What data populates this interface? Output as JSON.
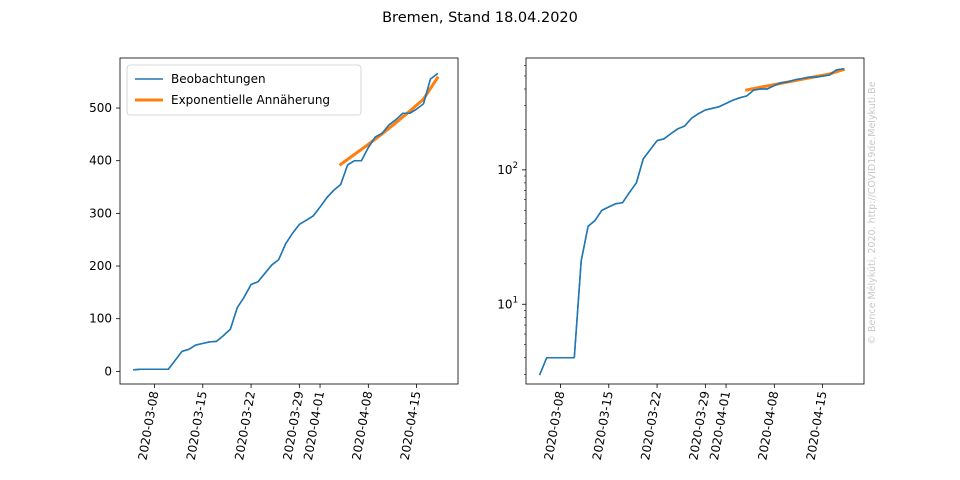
{
  "figure": {
    "title": "Bremen, Stand 18.04.2020",
    "watermark": "© Bence Mélykúti, 2020. http://COVID19de.Melykuti.Be"
  },
  "colors": {
    "observations": "#1f77b4",
    "fit": "#ff7f0e"
  },
  "chart_data": [
    {
      "type": "line",
      "yscale": "linear",
      "title": "",
      "xlabel": "",
      "ylabel": "",
      "xlim": [
        "2020-03-03",
        "2020-04-21"
      ],
      "ylim": [
        -24,
        595
      ],
      "xticks": [
        "2020-03-08",
        "2020-03-15",
        "2020-03-22",
        "2020-03-29",
        "2020-04-01",
        "2020-04-08",
        "2020-04-15"
      ],
      "yticks": [
        0,
        100,
        200,
        300,
        400,
        500
      ],
      "ytick_labels": [
        "0",
        "100",
        "200",
        "300",
        "400",
        "500"
      ],
      "legend_position": "upper-left",
      "grid": false,
      "series": [
        {
          "name": "Beobachtungen",
          "color": "#1f77b4",
          "x": [
            "2020-03-05",
            "2020-03-06",
            "2020-03-07",
            "2020-03-08",
            "2020-03-09",
            "2020-03-10",
            "2020-03-11",
            "2020-03-12",
            "2020-03-13",
            "2020-03-14",
            "2020-03-15",
            "2020-03-16",
            "2020-03-17",
            "2020-03-18",
            "2020-03-19",
            "2020-03-20",
            "2020-03-21",
            "2020-03-22",
            "2020-03-23",
            "2020-03-24",
            "2020-03-25",
            "2020-03-26",
            "2020-03-27",
            "2020-03-28",
            "2020-03-29",
            "2020-03-30",
            "2020-03-31",
            "2020-04-01",
            "2020-04-02",
            "2020-04-03",
            "2020-04-04",
            "2020-04-05",
            "2020-04-06",
            "2020-04-07",
            "2020-04-08",
            "2020-04-09",
            "2020-04-10",
            "2020-04-11",
            "2020-04-12",
            "2020-04-13",
            "2020-04-14",
            "2020-04-15",
            "2020-04-16",
            "2020-04-17",
            "2020-04-18"
          ],
          "y": [
            3,
            4,
            4,
            4,
            4,
            4,
            21,
            38,
            42,
            50,
            53,
            56,
            57,
            68,
            80,
            121,
            141,
            165,
            170,
            186,
            202,
            212,
            242,
            262,
            279,
            287,
            295,
            312,
            330,
            344,
            355,
            392,
            400,
            400,
            425,
            445,
            452,
            468,
            478,
            490,
            490,
            498,
            508,
            555,
            565
          ]
        },
        {
          "name": "Exponentielle Annäherung",
          "color": "#ff7f0e",
          "x": [
            "2020-04-04",
            "2020-04-06",
            "2020-04-08",
            "2020-04-10",
            "2020-04-12",
            "2020-04-14",
            "2020-04-16",
            "2020-04-18"
          ],
          "y": [
            393,
            412,
            431,
            451,
            472,
            494,
            517,
            557
          ]
        }
      ]
    },
    {
      "type": "line",
      "yscale": "log",
      "title": "",
      "xlabel": "",
      "ylabel": "",
      "xlim": [
        "2020-03-03",
        "2020-04-21"
      ],
      "ylim": [
        2.55,
        680
      ],
      "xticks": [
        "2020-03-08",
        "2020-03-15",
        "2020-03-22",
        "2020-03-29",
        "2020-04-01",
        "2020-04-08",
        "2020-04-15"
      ],
      "yticks": [
        10,
        100
      ],
      "ytick_labels": [
        "10¹",
        "10²"
      ],
      "grid": false,
      "series": [
        {
          "name": "Beobachtungen",
          "color": "#1f77b4",
          "x": [
            "2020-03-05",
            "2020-03-06",
            "2020-03-07",
            "2020-03-08",
            "2020-03-09",
            "2020-03-10",
            "2020-03-11",
            "2020-03-12",
            "2020-03-13",
            "2020-03-14",
            "2020-03-15",
            "2020-03-16",
            "2020-03-17",
            "2020-03-18",
            "2020-03-19",
            "2020-03-20",
            "2020-03-21",
            "2020-03-22",
            "2020-03-23",
            "2020-03-24",
            "2020-03-25",
            "2020-03-26",
            "2020-03-27",
            "2020-03-28",
            "2020-03-29",
            "2020-03-30",
            "2020-03-31",
            "2020-04-01",
            "2020-04-02",
            "2020-04-03",
            "2020-04-04",
            "2020-04-05",
            "2020-04-06",
            "2020-04-07",
            "2020-04-08",
            "2020-04-09",
            "2020-04-10",
            "2020-04-11",
            "2020-04-12",
            "2020-04-13",
            "2020-04-14",
            "2020-04-15",
            "2020-04-16",
            "2020-04-17",
            "2020-04-18"
          ],
          "y": [
            3,
            4,
            4,
            4,
            4,
            4,
            21,
            38,
            42,
            50,
            53,
            56,
            57,
            68,
            80,
            121,
            141,
            165,
            170,
            186,
            202,
            212,
            242,
            262,
            279,
            287,
            295,
            312,
            330,
            344,
            355,
            392,
            400,
            400,
            425,
            445,
            452,
            468,
            478,
            490,
            490,
            498,
            508,
            555,
            565
          ]
        },
        {
          "name": "Exponentielle Annäherung",
          "color": "#ff7f0e",
          "x": [
            "2020-04-04",
            "2020-04-06",
            "2020-04-08",
            "2020-04-10",
            "2020-04-12",
            "2020-04-14",
            "2020-04-16",
            "2020-04-18"
          ],
          "y": [
            393,
            412,
            431,
            451,
            472,
            494,
            517,
            557
          ]
        }
      ]
    }
  ]
}
